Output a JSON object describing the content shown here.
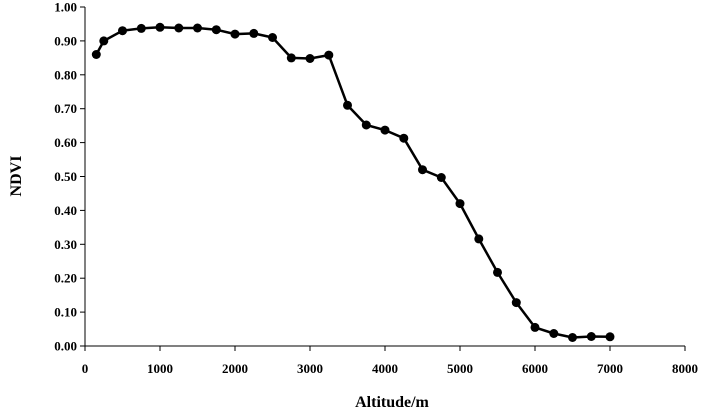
{
  "chart_data": {
    "type": "line",
    "title": "",
    "xlabel": "Altitude/m",
    "ylabel": "NDVI",
    "xlim": [
      0,
      8000
    ],
    "ylim": [
      0.0,
      1.0
    ],
    "x_ticks": [
      "0",
      "1000",
      "2000",
      "3000",
      "4000",
      "5000",
      "6000",
      "7000",
      "8000"
    ],
    "y_ticks": [
      "0.00",
      "0.10",
      "0.20",
      "0.30",
      "0.40",
      "0.50",
      "0.60",
      "0.70",
      "0.80",
      "0.90",
      "1.00"
    ],
    "grid": false,
    "legend": "none",
    "series": [
      {
        "color": "#000000",
        "marker": "circle",
        "x": [
          150,
          250,
          500,
          750,
          1000,
          1250,
          1500,
          1750,
          2000,
          2250,
          2500,
          2750,
          3000,
          3250,
          3500,
          3750,
          4000,
          4250,
          4500,
          4750,
          5000,
          5250,
          5500,
          5750,
          6000,
          6250,
          6500,
          6750,
          7000
        ],
        "y": [
          0.86,
          0.9,
          0.93,
          0.937,
          0.94,
          0.938,
          0.938,
          0.933,
          0.92,
          0.922,
          0.91,
          0.85,
          0.848,
          0.858,
          0.71,
          0.652,
          0.637,
          0.613,
          0.52,
          0.497,
          0.42,
          0.316,
          0.217,
          0.128,
          0.055,
          0.037,
          0.025,
          0.028,
          0.027
        ]
      }
    ]
  }
}
